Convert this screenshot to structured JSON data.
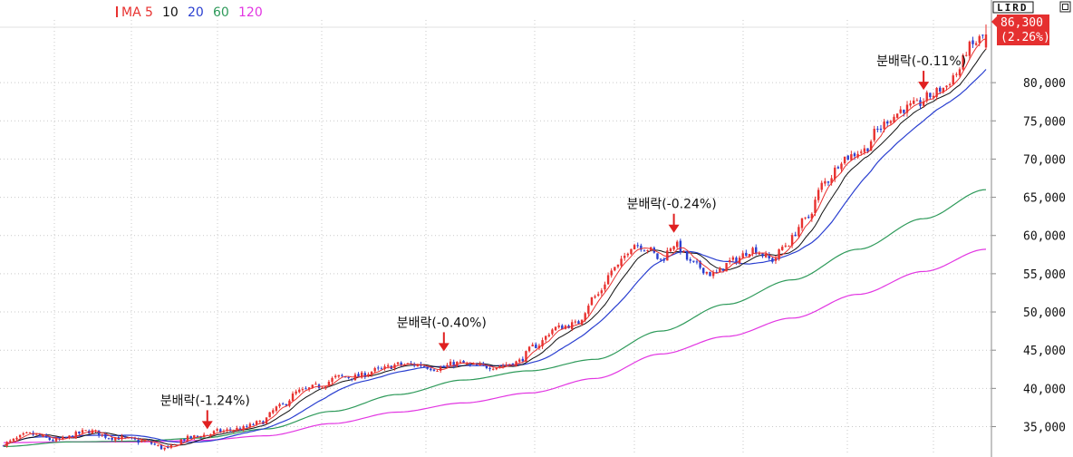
{
  "chart_data": {
    "type": "candlestick",
    "legend": {
      "prefix": "MA",
      "items": [
        {
          "label": "5",
          "color": "#e8312f"
        },
        {
          "label": "10",
          "color": "#111111"
        },
        {
          "label": "20",
          "color": "#2a3fd0"
        },
        {
          "label": "60",
          "color": "#2e9a5a"
        },
        {
          "label": "120",
          "color": "#e236e2"
        }
      ]
    },
    "badge": "LIRD",
    "price_box": {
      "price": "86,300",
      "change": "(2.26%)",
      "color": "#e53030"
    },
    "ylim": [
      31500,
      88200
    ],
    "yticks": [
      {
        "v": 80000,
        "t": "80,000"
      },
      {
        "v": 75000,
        "t": "75,000"
      },
      {
        "v": 70000,
        "t": "70,000"
      },
      {
        "v": 65000,
        "t": "65,000"
      },
      {
        "v": 60000,
        "t": "60,000"
      },
      {
        "v": 55000,
        "t": "55,000"
      },
      {
        "v": 50000,
        "t": "50,000"
      },
      {
        "v": 45000,
        "t": "45,000"
      },
      {
        "v": 40000,
        "t": "40,000"
      },
      {
        "v": 35000,
        "t": "35,000"
      }
    ],
    "num_points": 300,
    "price_path": [
      [
        0,
        32800
      ],
      [
        8,
        34000
      ],
      [
        16,
        33200
      ],
      [
        26,
        34400
      ],
      [
        33,
        33600
      ],
      [
        42,
        33100
      ],
      [
        50,
        32100
      ],
      [
        55,
        33400
      ],
      [
        61,
        33900
      ],
      [
        66,
        34400
      ],
      [
        72,
        34700
      ],
      [
        78,
        35500
      ],
      [
        84,
        37600
      ],
      [
        90,
        39600
      ],
      [
        96,
        40300
      ],
      [
        102,
        41500
      ],
      [
        107,
        41500
      ],
      [
        114,
        42400
      ],
      [
        120,
        43100
      ],
      [
        126,
        43100
      ],
      [
        132,
        42600
      ],
      [
        138,
        43300
      ],
      [
        144,
        42900
      ],
      [
        150,
        42900
      ],
      [
        156,
        43400
      ],
      [
        162,
        45600
      ],
      [
        168,
        47900
      ],
      [
        174,
        48400
      ],
      [
        180,
        52000
      ],
      [
        186,
        55700
      ],
      [
        192,
        58900
      ],
      [
        196,
        58300
      ],
      [
        200,
        56800
      ],
      [
        204,
        58900
      ],
      [
        210,
        56200
      ],
      [
        216,
        54900
      ],
      [
        222,
        56700
      ],
      [
        228,
        58200
      ],
      [
        234,
        56800
      ],
      [
        238,
        58800
      ],
      [
        244,
        62000
      ],
      [
        250,
        67000
      ],
      [
        256,
        70200
      ],
      [
        262,
        71200
      ],
      [
        266,
        73800
      ],
      [
        270,
        75400
      ],
      [
        274,
        76600
      ],
      [
        278,
        77100
      ],
      [
        282,
        78300
      ],
      [
        286,
        79300
      ],
      [
        290,
        81200
      ],
      [
        294,
        84700
      ],
      [
        299,
        86300
      ]
    ],
    "ma60_path": [
      [
        0,
        32400
      ],
      [
        20,
        33000
      ],
      [
        40,
        33100
      ],
      [
        60,
        33500
      ],
      [
        80,
        34700
      ],
      [
        100,
        37000
      ],
      [
        120,
        39200
      ],
      [
        140,
        41100
      ],
      [
        160,
        42300
      ],
      [
        180,
        43800
      ],
      [
        200,
        47500
      ],
      [
        220,
        51000
      ],
      [
        240,
        54200
      ],
      [
        260,
        58200
      ],
      [
        280,
        62200
      ],
      [
        299,
        66000
      ]
    ],
    "ma120_path": [
      [
        0,
        32900
      ],
      [
        20,
        33000
      ],
      [
        40,
        33000
      ],
      [
        60,
        33200
      ],
      [
        80,
        33800
      ],
      [
        100,
        35400
      ],
      [
        120,
        36900
      ],
      [
        140,
        38100
      ],
      [
        160,
        39400
      ],
      [
        180,
        41300
      ],
      [
        200,
        44500
      ],
      [
        220,
        46800
      ],
      [
        240,
        49200
      ],
      [
        260,
        52300
      ],
      [
        280,
        55300
      ],
      [
        299,
        58200
      ]
    ],
    "annotations": [
      {
        "text": "분배락(-1.24%)",
        "x": 62,
        "y": 34300
      },
      {
        "text": "분배락(-0.40%)",
        "x": 134,
        "y": 44500
      },
      {
        "text": "분배락(-0.24%)",
        "x": 204,
        "y": 60000
      },
      {
        "text": "분배락(-0.11%)",
        "x": 280,
        "y": 78700
      }
    ],
    "colors": {
      "up": "#e8312f",
      "down": "#2a3fd0",
      "grid": "#c9c9c9",
      "axis": "#8a8a8a"
    }
  }
}
